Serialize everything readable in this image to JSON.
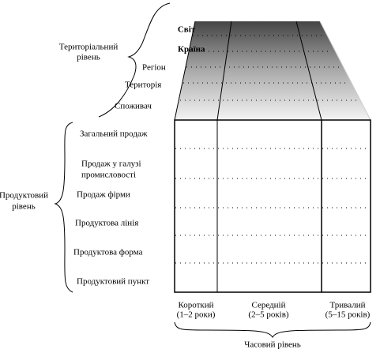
{
  "territorial_level": {
    "label": [
      "Територіальний",
      "рівень"
    ],
    "items": [
      "Світ",
      "Країна",
      "Регіон",
      "Територія",
      "Споживач"
    ]
  },
  "product_level": {
    "label": [
      "Продуктовий",
      "рівень"
    ],
    "items": [
      [
        "Загальний продаж"
      ],
      [
        "Продаж у галузі",
        "промисловості"
      ],
      [
        "Продаж фірми"
      ],
      [
        "Продуктова лінія"
      ],
      [
        "Продуктова форма"
      ],
      [
        "Продуктовий пункт"
      ]
    ]
  },
  "time_level": {
    "label": "Часовий рівень",
    "items": [
      [
        "Короткий",
        "(1–2 роки)"
      ],
      [
        "Середній",
        "(2–5 років)"
      ],
      [
        "Тривалий",
        "(5–15 років)"
      ]
    ]
  }
}
